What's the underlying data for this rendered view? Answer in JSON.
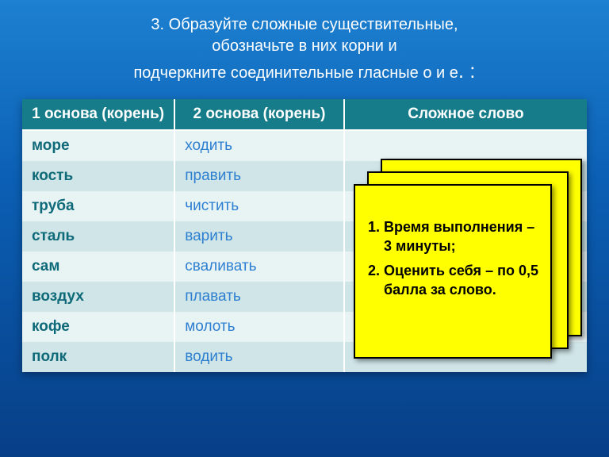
{
  "colors": {
    "bg_top": "#1d80d0",
    "bg_bottom": "#073f87",
    "header_bg": "#167c8a",
    "row_odd": "#e8f3f4",
    "row_even": "#cfe5e7",
    "col1_text": "#0e6a78",
    "col2_text": "#2d7fd1",
    "note_bg": "#ffff00",
    "note_border": "#000000",
    "title_color": "#ffffff"
  },
  "typography": {
    "base_font": "Arial",
    "title_size": 20,
    "table_size": 19,
    "note_size": 18
  },
  "title": {
    "line1": "3. Образуйте сложные существительные,",
    "line2": "обозначьте в них корни и",
    "line3": "подчеркните соединительные гласные о и е",
    "line3_suffix": ". :"
  },
  "table": {
    "type": "table",
    "columns": [
      "1 основа (корень)",
      "2 основа (корень)",
      "Сложное слово"
    ],
    "col_widths_pct": [
      27,
      30,
      43
    ],
    "rows": [
      [
        "море",
        "ходить",
        ""
      ],
      [
        "кость",
        "править",
        ""
      ],
      [
        "труба",
        "чистить",
        ""
      ],
      [
        "сталь",
        "варить",
        ""
      ],
      [
        "сам",
        "сваливать",
        ""
      ],
      [
        "воздух",
        "плавать",
        ""
      ],
      [
        "кофе",
        "молоть",
        ""
      ],
      [
        "полк",
        "водить",
        ""
      ]
    ]
  },
  "note": {
    "items": [
      "Время выполнения – 3 минуты;",
      "Оценить себя – по 0,5 балла за слово."
    ]
  }
}
